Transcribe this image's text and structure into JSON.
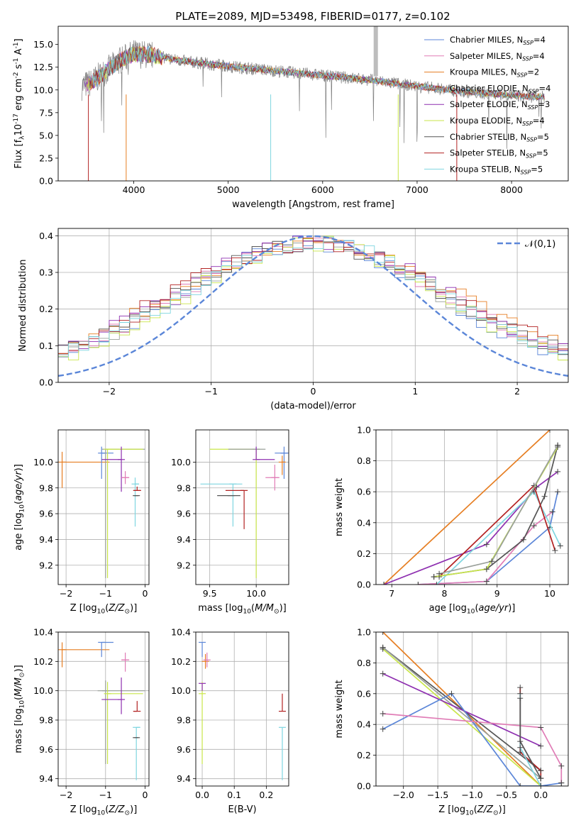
{
  "title": "PLATE=2089, MJD=53498, FIBERID=0177, z=0.102",
  "colors": {
    "Chabrier MILES": "#5b86d8",
    "Salpeter MILES": "#e07cb6",
    "Kroupa MILES": "#e67e22",
    "Chabrier ELODIE": "#9aa09a",
    "Salpeter ELODIE": "#8e2fb0",
    "Kroupa ELODIE": "#c9e64a",
    "Chabrier STELIB": "#555555",
    "Salpeter STELIB": "#b22222",
    "Kroupa STELIB": "#7fd6e0"
  },
  "legend_entries": [
    "Chabrier MILES, N$_{SSP}$=4",
    "Salpeter MILES, N$_{SSP}$=4",
    "Kroupa MILES, N$_{SSP}$=2",
    "Chabrier ELODIE, N$_{SSP}$=4",
    "Salpeter ELODIE, N$_{SSP}$=3",
    "Kroupa ELODIE, N$_{SSP}$=4",
    "Chabrier STELIB, N$_{SSP}$=5",
    "Salpeter STELIB, N$_{SSP}$=5",
    "Kroupa STELIB, N$_{SSP}$=5"
  ],
  "chart_data": [
    {
      "id": "spectrum",
      "type": "line",
      "xlabel": "wavelength [Angstrom, rest frame]",
      "ylabel": "Flux [f$_\\lambda$10$^{-17}$ erg cm$^{-2}$ s$^{-1}$ A$^{-1}$]",
      "xlim": [
        3200,
        8600
      ],
      "ylim": [
        0,
        17
      ],
      "xticks": [
        4000,
        5000,
        6000,
        7000,
        8000
      ],
      "yticks": [
        0.0,
        2.5,
        5.0,
        7.5,
        10.0,
        12.5,
        15.0
      ],
      "grid": false,
      "legend": "top-right",
      "continuum": {
        "x": [
          3450,
          3550,
          3700,
          3850,
          4000,
          4200,
          4500,
          5000,
          5500,
          6000,
          6500,
          7000,
          7500,
          8000,
          8350
        ],
        "y": [
          10.4,
          10.8,
          12.0,
          13.2,
          14.0,
          13.8,
          13.2,
          12.6,
          12.1,
          11.6,
          11.1,
          10.4,
          9.8,
          9.4,
          9.2
        ]
      }
    },
    {
      "id": "residuals",
      "type": "line",
      "xlabel": "(data-model)/error",
      "ylabel": "Normed distribution",
      "xlim": [
        -2.5,
        2.5
      ],
      "ylim": [
        0,
        0.42
      ],
      "xticks": [
        -2,
        -1,
        0,
        1,
        2
      ],
      "yticks": [
        0.0,
        0.1,
        0.2,
        0.3,
        0.4
      ],
      "grid": true,
      "legend": "top-right",
      "reference_label": "$\\mathcal{N}(0,1)$",
      "bin_width": 0.1
    },
    {
      "id": "age_vs_Z",
      "type": "scatter",
      "xlabel": "Z [log$_{10}$($Z/Z_\\odot$)]",
      "ylabel": "age  [log$_{10}$($age/yr$)]",
      "xlim": [
        -2.2,
        0.1
      ],
      "ylim": [
        9.05,
        10.25
      ],
      "xticks": [
        -2,
        -1,
        0
      ],
      "yticks": [
        9.2,
        9.4,
        9.6,
        9.8,
        10.0
      ],
      "grid": true,
      "points": [
        {
          "model": "Kroupa MILES",
          "x": -2.1,
          "y": 10.0,
          "xerr": [
            0.0,
            1.2
          ],
          "yerr": [
            0.2,
            0.08
          ]
        },
        {
          "model": "Chabrier MILES",
          "x": -1.1,
          "y": 10.07,
          "xerr": [
            0.0,
            0.3
          ],
          "yerr": [
            0.2,
            0.05
          ]
        },
        {
          "model": "Chabrier ELODIE",
          "x": -1.0,
          "y": 10.1,
          "xerr": [
            0.0,
            1.0
          ],
          "yerr": [
            1.0,
            0.0
          ]
        },
        {
          "model": "Kroupa ELODIE",
          "x": -0.95,
          "y": 10.1,
          "xerr": [
            0.0,
            0.9
          ],
          "yerr": [
            1.0,
            0.0
          ]
        },
        {
          "model": "Salpeter ELODIE",
          "x": -0.6,
          "y": 10.02,
          "xerr": [
            0.5,
            0.0
          ],
          "yerr": [
            0.25,
            0.1
          ]
        },
        {
          "model": "Salpeter MILES",
          "x": -0.5,
          "y": 9.88,
          "xerr": [
            0.1,
            0.1
          ],
          "yerr": [
            0.05,
            0.05
          ]
        },
        {
          "model": "Kroupa STELIB",
          "x": -0.25,
          "y": 9.83,
          "xerr": [
            0.0,
            0.1
          ],
          "yerr": [
            0.33,
            0.05
          ]
        },
        {
          "model": "Salpeter STELIB",
          "x": -0.2,
          "y": 9.78,
          "xerr": [
            0.1,
            0.1
          ],
          "yerr": [
            0.0,
            0.03
          ]
        },
        {
          "model": "Chabrier STELIB",
          "x": -0.22,
          "y": 9.74,
          "xerr": [
            0.05,
            0.05
          ],
          "yerr": [
            0.0,
            0.0
          ]
        }
      ]
    },
    {
      "id": "age_vs_mass",
      "type": "scatter",
      "xlabel": "mass [log$_{10}$($M/M_\\odot$)]",
      "ylabel": "",
      "xlim": [
        9.35,
        10.35
      ],
      "ylim": [
        9.05,
        10.25
      ],
      "xticks": [
        9.5,
        10.0
      ],
      "yticks": [
        9.2,
        9.4,
        9.6,
        9.8,
        10.0
      ],
      "grid": true,
      "points": [
        {
          "model": "Kroupa ELODIE",
          "x": 10.0,
          "y": 10.1,
          "xerr": [
            0.5,
            0.0
          ],
          "yerr": [
            1.0,
            0.0
          ]
        },
        {
          "model": "Chabrier ELODIE",
          "x": 10.0,
          "y": 10.1,
          "xerr": [
            0.3,
            0.1
          ],
          "yerr": [
            0.0,
            0.0
          ]
        },
        {
          "model": "Salpeter ELODIE",
          "x": 10.0,
          "y": 10.02,
          "xerr": [
            0.0,
            0.2
          ],
          "yerr": [
            0.0,
            0.1
          ]
        },
        {
          "model": "Chabrier MILES",
          "x": 10.3,
          "y": 10.07,
          "xerr": [
            0.1,
            0.05
          ],
          "yerr": [
            0.2,
            0.05
          ]
        },
        {
          "model": "Kroupa MILES",
          "x": 10.28,
          "y": 10.0,
          "xerr": [
            0.0,
            0.03
          ],
          "yerr": [
            0.1,
            0.05
          ]
        },
        {
          "model": "Salpeter MILES",
          "x": 10.2,
          "y": 9.88,
          "xerr": [
            0.1,
            0.05
          ],
          "yerr": [
            0.1,
            0.1
          ]
        },
        {
          "model": "Kroupa STELIB",
          "x": 9.75,
          "y": 9.83,
          "xerr": [
            0.35,
            0.1
          ],
          "yerr": [
            0.33,
            0.0
          ]
        },
        {
          "model": "Salpeter STELIB",
          "x": 9.87,
          "y": 9.78,
          "xerr": [
            0.2,
            0.0
          ],
          "yerr": [
            0.3,
            0.0
          ]
        },
        {
          "model": "Chabrier STELIB",
          "x": 9.73,
          "y": 9.74,
          "xerr": [
            0.15,
            0.1
          ],
          "yerr": [
            0.0,
            0.0
          ]
        }
      ]
    },
    {
      "id": "weight_vs_age",
      "type": "line",
      "xlabel": "age  [log$_{10}$($age/yr$)]",
      "ylabel": "mass weight",
      "xlim": [
        6.7,
        10.35
      ],
      "ylim": [
        0,
        1.0
      ],
      "xticks": [
        7,
        8,
        9,
        10
      ],
      "yticks": [
        0.0,
        0.2,
        0.4,
        0.6,
        0.8,
        1.0
      ],
      "grid": true,
      "series": [
        {
          "name": "Kroupa MILES",
          "x": [
            6.85,
            10.0
          ],
          "y": [
            0.0,
            1.0
          ]
        },
        {
          "name": "Salpeter ELODIE",
          "x": [
            6.85,
            8.8,
            9.75,
            10.15
          ],
          "y": [
            0.0,
            0.26,
            0.63,
            0.73
          ]
        },
        {
          "name": "Chabrier MILES",
          "x": [
            7.5,
            8.8,
            10.0,
            10.15
          ],
          "y": [
            0.0,
            0.02,
            0.37,
            0.6
          ]
        },
        {
          "name": "Salpeter MILES",
          "x": [
            7.5,
            8.8,
            9.7,
            10.05
          ],
          "y": [
            0.0,
            0.02,
            0.38,
            0.47
          ]
        },
        {
          "name": "Kroupa STELIB",
          "x": [
            7.85,
            9.7,
            10.2
          ],
          "y": [
            0.0,
            0.6,
            0.25
          ]
        },
        {
          "name": "Chabrier STELIB",
          "x": [
            7.8,
            8.8,
            9.5,
            9.9,
            10.15
          ],
          "y": [
            0.05,
            0.1,
            0.29,
            0.57,
            0.9
          ]
        },
        {
          "name": "Salpeter STELIB",
          "x": [
            7.9,
            9.7,
            10.1
          ],
          "y": [
            0.05,
            0.64,
            0.22
          ]
        },
        {
          "name": "Kroupa ELODIE",
          "x": [
            7.8,
            8.8,
            10.15
          ],
          "y": [
            0.05,
            0.1,
            0.89
          ]
        },
        {
          "name": "Chabrier ELODIE",
          "x": [
            7.9,
            8.9,
            10.15
          ],
          "y": [
            0.07,
            0.15,
            0.9
          ]
        }
      ]
    },
    {
      "id": "mass_vs_Z",
      "type": "scatter",
      "xlabel": "Z [log$_{10}$($Z/Z_\\odot$)]",
      "ylabel": "mass [log$_{10}$($M/M_\\odot$)]",
      "xlim": [
        -2.2,
        0.1
      ],
      "ylim": [
        9.35,
        10.4
      ],
      "xticks": [
        -2,
        -1,
        0
      ],
      "yticks": [
        9.4,
        9.6,
        9.8,
        10.0,
        10.2,
        10.4
      ],
      "grid": true,
      "points": [
        {
          "model": "Kroupa MILES",
          "x": -2.1,
          "y": 10.28,
          "xerr": [
            0.0,
            1.2
          ],
          "yerr": [
            0.12,
            0.05
          ]
        },
        {
          "model": "Chabrier MILES",
          "x": -1.1,
          "y": 10.33,
          "xerr": [
            0.0,
            0.3
          ],
          "yerr": [
            0.1,
            0.0
          ]
        },
        {
          "model": "Chabrier ELODIE",
          "x": -1.0,
          "y": 10.0,
          "xerr": [
            0.2,
            1.0
          ],
          "yerr": [
            0.5,
            0.07
          ]
        },
        {
          "model": "Kroupa ELODIE",
          "x": -0.95,
          "y": 9.98,
          "xerr": [
            0.0,
            0.9
          ],
          "yerr": [
            0.48,
            0.08
          ]
        },
        {
          "model": "Salpeter ELODIE",
          "x": -0.6,
          "y": 9.94,
          "xerr": [
            0.5,
            0.0
          ],
          "yerr": [
            0.1,
            0.15
          ]
        },
        {
          "model": "Salpeter MILES",
          "x": -0.5,
          "y": 10.21,
          "xerr": [
            0.1,
            0.1
          ],
          "yerr": [
            0.08,
            0.05
          ]
        },
        {
          "model": "Kroupa STELIB",
          "x": -0.22,
          "y": 9.75,
          "xerr": [
            0.0,
            0.1
          ],
          "yerr": [
            0.36,
            0.0
          ]
        },
        {
          "model": "Salpeter STELIB",
          "x": -0.2,
          "y": 9.86,
          "xerr": [
            0.1,
            0.0
          ],
          "yerr": [
            0.0,
            0.07
          ]
        },
        {
          "model": "Chabrier STELIB",
          "x": -0.22,
          "y": 9.68,
          "xerr": [
            0.05,
            0.05
          ],
          "yerr": [
            0.0,
            0.0
          ]
        }
      ]
    },
    {
      "id": "mass_vs_ebv",
      "type": "scatter",
      "xlabel": "E(B-V)",
      "ylabel": "",
      "xlim": [
        -0.02,
        0.27
      ],
      "ylim": [
        9.35,
        10.4
      ],
      "xticks": [
        0.0,
        0.1,
        0.2
      ],
      "yticks": [
        9.4,
        9.6,
        9.8,
        10.0,
        10.2,
        10.4
      ],
      "grid": true,
      "points": [
        {
          "model": "Chabrier MILES",
          "x": 0.0,
          "y": 10.33,
          "xerr": [
            0.0,
            0.0
          ],
          "yerr": [
            0.1,
            0.0
          ]
        },
        {
          "model": "Kroupa ELODIE",
          "x": 0.0,
          "y": 9.98,
          "xerr": [
            0.0,
            0.0
          ],
          "yerr": [
            0.48,
            0.08
          ]
        },
        {
          "model": "Salpeter ELODIE",
          "x": 0.0,
          "y": 10.05,
          "xerr": [
            0.0,
            0.0
          ],
          "yerr": [
            0.05,
            0.0
          ]
        },
        {
          "model": "Kroupa MILES",
          "x": 0.01,
          "y": 10.2,
          "xerr": [
            0.0,
            0.0
          ],
          "yerr": [
            0.05,
            0.05
          ]
        },
        {
          "model": "Salpeter MILES",
          "x": 0.015,
          "y": 10.21,
          "xerr": [
            0.0,
            0.0
          ],
          "yerr": [
            0.05,
            0.05
          ]
        },
        {
          "model": "Salpeter STELIB",
          "x": 0.25,
          "y": 9.86,
          "xerr": [
            0.0,
            0.0
          ],
          "yerr": [
            0.0,
            0.12
          ]
        },
        {
          "model": "Kroupa STELIB",
          "x": 0.25,
          "y": 9.75,
          "xerr": [
            0.0,
            0.0
          ],
          "yerr": [
            0.36,
            0.0
          ]
        }
      ]
    },
    {
      "id": "weight_vs_Z",
      "type": "line",
      "xlabel": "Z [log$_{10}$($Z/Z_\\odot$)]",
      "ylabel": "mass weight",
      "xlim": [
        -2.4,
        0.4
      ],
      "ylim": [
        0,
        1.0
      ],
      "xticks": [
        -2.0,
        -1.5,
        -1.0,
        -0.5,
        0.0
      ],
      "yticks": [
        0.0,
        0.2,
        0.4,
        0.6,
        0.8,
        1.0
      ],
      "grid": true,
      "series": [
        {
          "name": "Kroupa MILES",
          "x": [
            -2.3,
            0.0
          ],
          "y": [
            1.0,
            0.0
          ]
        },
        {
          "name": "Chabrier STELIB",
          "x": [
            -2.3,
            0.0
          ],
          "y": [
            0.9,
            0.1
          ]
        },
        {
          "name": "Kroupa ELODIE",
          "x": [
            -2.3,
            0.0
          ],
          "y": [
            0.89,
            0.0
          ]
        },
        {
          "name": "Chabrier ELODIE",
          "x": [
            -2.3,
            0.0
          ],
          "y": [
            0.9,
            0.05
          ]
        },
        {
          "name": "Salpeter ELODIE",
          "x": [
            -2.3,
            0.0
          ],
          "y": [
            0.73,
            0.26
          ]
        },
        {
          "name": "Chabrier MILES",
          "x": [
            -2.3,
            -1.3,
            -0.3,
            0.0,
            0.3
          ],
          "y": [
            0.37,
            0.6,
            0.0,
            0.0,
            0.02
          ]
        },
        {
          "name": "Salpeter MILES",
          "x": [
            -2.3,
            0.0,
            0.3,
            0.3
          ],
          "y": [
            0.47,
            0.38,
            0.13,
            0.02
          ]
        },
        {
          "name": "Salpeter STELIB",
          "x": [
            -0.3,
            -0.3,
            0.0,
            0.0
          ],
          "y": [
            0.64,
            0.22,
            0.1,
            0.05
          ]
        },
        {
          "name": "Kroupa STELIB",
          "x": [
            -0.3,
            -0.3,
            0.0
          ],
          "y": [
            0.6,
            0.25,
            0.0
          ]
        },
        {
          "name": "Chabrier STELIB",
          "x": [
            -0.3,
            -0.3,
            0.0
          ],
          "y": [
            0.57,
            0.29,
            0.05
          ]
        }
      ]
    }
  ]
}
